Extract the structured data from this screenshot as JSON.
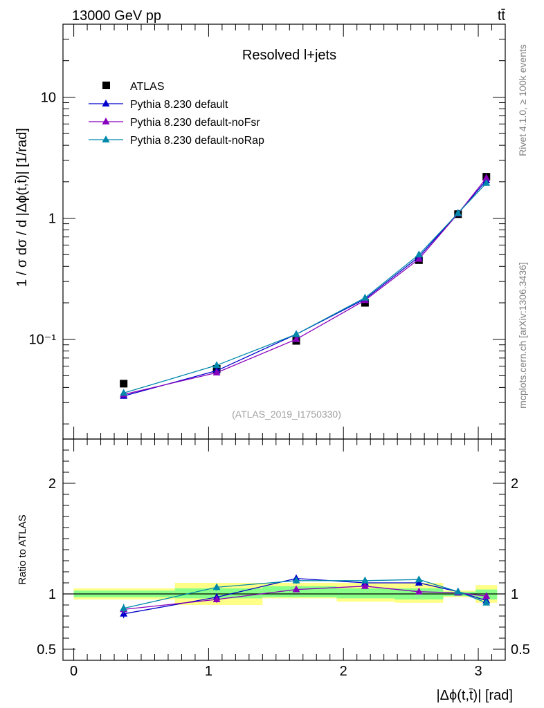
{
  "header": {
    "energy_label": "13000 GeV pp",
    "process_label": "tt̄"
  },
  "side_labels": {
    "rivet": "Rivet 4.1.0, ≥ 100k events",
    "mcplots": "mcplots.cern.ch [arXiv:1306.3436]"
  },
  "chart_data": [
    {
      "type": "line",
      "panel": "main",
      "title": "Resolved l+jets",
      "watermark": "(ATLAS_2019_I1750330)",
      "ylabel": "1 / σ dσ / d |Δϕ(t,t̄)| [1/rad]",
      "yscale": "log",
      "ylim": [
        0.015,
        40
      ],
      "xlim": [
        -0.08,
        3.2
      ],
      "ytick_labels": [
        "10",
        "1",
        "10⁻¹"
      ],
      "x": [
        0.37,
        1.06,
        1.65,
        2.16,
        2.56,
        2.85,
        3.06
      ],
      "series": [
        {
          "name": "ATLAS",
          "marker": "square",
          "color": "#000000",
          "values": [
            0.043,
            0.057,
            0.097,
            0.2,
            0.45,
            1.08,
            2.2
          ]
        },
        {
          "name": "Pythia 8.230 default",
          "marker": "triangle",
          "color": "#0000cc",
          "values": [
            0.034,
            0.055,
            0.11,
            0.215,
            0.48,
            1.1,
            2.05
          ]
        },
        {
          "name": "Pythia 8.230 default-noFsr",
          "marker": "triangle",
          "color": "#8800bb",
          "values": [
            0.035,
            0.053,
            0.1,
            0.21,
            0.46,
            1.09,
            2.15
          ]
        },
        {
          "name": "Pythia 8.230 default-noRap",
          "marker": "triangle",
          "color": "#0088aa",
          "values": [
            0.036,
            0.061,
            0.11,
            0.22,
            0.5,
            1.1,
            1.95
          ]
        }
      ]
    },
    {
      "type": "line",
      "panel": "ratio",
      "ylabel": "Ratio to ATLAS",
      "xlabel": "|Δϕ(t,t̄)| [rad]",
      "ylim": [
        0.4,
        2.4
      ],
      "xlim": [
        -0.08,
        3.2
      ],
      "ytick_labels": [
        "2",
        "1",
        "0.5"
      ],
      "xtick_labels": [
        "0",
        "1",
        "2",
        "3"
      ],
      "reference_line": 1,
      "x": [
        0.37,
        1.06,
        1.65,
        2.16,
        2.56,
        2.85,
        3.06
      ],
      "uncertainty_bins": [
        {
          "x0": 0.0,
          "x1": 0.75,
          "stat_lo": 0.97,
          "stat_hi": 1.03,
          "tot_lo": 0.95,
          "tot_hi": 1.05
        },
        {
          "x0": 0.75,
          "x1": 1.4,
          "stat_lo": 0.96,
          "stat_hi": 1.05,
          "tot_lo": 0.9,
          "tot_hi": 1.1
        },
        {
          "x0": 1.4,
          "x1": 1.95,
          "stat_lo": 0.97,
          "stat_hi": 1.07,
          "tot_lo": 0.96,
          "tot_hi": 1.1
        },
        {
          "x0": 1.95,
          "x1": 2.38,
          "stat_lo": 0.96,
          "stat_hi": 1.05,
          "tot_lo": 0.93,
          "tot_hi": 1.1
        },
        {
          "x0": 2.38,
          "x1": 2.74,
          "stat_lo": 0.95,
          "stat_hi": 1.05,
          "tot_lo": 0.92,
          "tot_hi": 1.1
        },
        {
          "x0": 2.74,
          "x1": 2.98,
          "stat_lo": 0.98,
          "stat_hi": 1.02,
          "tot_lo": 0.97,
          "tot_hi": 1.03
        },
        {
          "x0": 2.98,
          "x1": 3.14,
          "stat_lo": 0.95,
          "stat_hi": 1.04,
          "tot_lo": 0.92,
          "tot_hi": 1.08
        }
      ],
      "series": [
        {
          "name": "Pythia 8.230 default",
          "color": "#0000cc",
          "values": [
            0.82,
            0.97,
            1.14,
            1.1,
            1.1,
            1.02,
            0.94
          ],
          "errors": [
            0.04,
            0.03,
            0.03,
            0.02,
            0.02,
            0.01,
            0.01
          ]
        },
        {
          "name": "Pythia 8.230 default-noFsr",
          "color": "#8800bb",
          "values": [
            0.86,
            0.95,
            1.04,
            1.07,
            1.02,
            1.01,
            0.98
          ],
          "errors": [
            0.04,
            0.03,
            0.02,
            0.02,
            0.02,
            0.01,
            0.01
          ]
        },
        {
          "name": "Pythia 8.230 default-noRap",
          "color": "#0088aa",
          "values": [
            0.87,
            1.06,
            1.12,
            1.12,
            1.13,
            1.02,
            0.92
          ],
          "errors": [
            0.04,
            0.03,
            0.03,
            0.02,
            0.02,
            0.01,
            0.01
          ]
        }
      ]
    }
  ]
}
